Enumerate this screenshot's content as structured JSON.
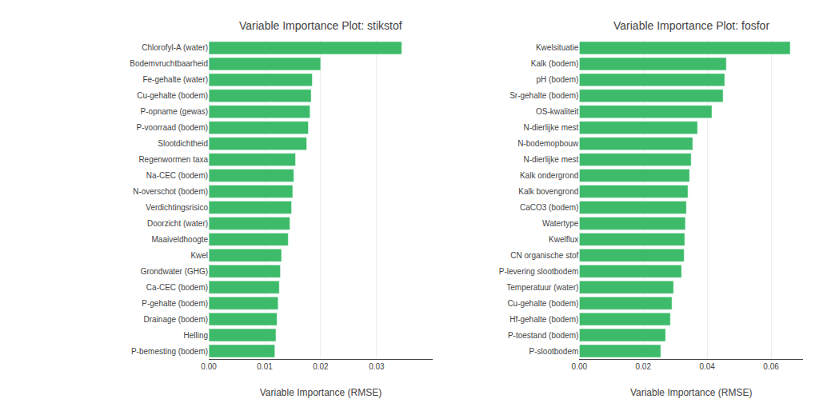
{
  "chart_data": [
    {
      "type": "bar",
      "orientation": "horizontal",
      "title": "Variable Importance Plot: stikstof",
      "xlabel": "Variable Importance (RMSE)",
      "categories": [
        "Chlorofyl-A (water)",
        "Bodemvruchtbaarheid",
        "Fe-gehalte (water)",
        "Cu-gehalte (bodem)",
        "P-opname (gewas)",
        "P-voorraad (bodem)",
        "Slootdichtheid",
        "Regenwormen taxa",
        "Na-CEC (bodem)",
        "N-overschot (bodem)",
        "Verdichtingsrisico",
        "Doorzicht (water)",
        "Maaiveldhoogte",
        "Kwel",
        "Grondwater (GHG)",
        "Ca-CEC (bodem)",
        "P-gehalte (bodem)",
        "Drainage (bodem)",
        "Helling",
        "P-bemesting (bodem)"
      ],
      "values": [
        0.0345,
        0.02,
        0.0185,
        0.0183,
        0.0181,
        0.0178,
        0.0175,
        0.0155,
        0.0152,
        0.015,
        0.0148,
        0.0145,
        0.0142,
        0.013,
        0.0128,
        0.0126,
        0.0124,
        0.0122,
        0.012,
        0.0118
      ],
      "color": "#3dbb6a",
      "xlim": [
        0,
        0.04
      ],
      "xticks": [
        {
          "value": 0,
          "label": "0.00"
        },
        0.01,
        0.02,
        0.03
      ],
      "grid": true
    },
    {
      "type": "bar",
      "orientation": "horizontal",
      "title": "Variable Importance Plot: fosfor",
      "xlabel": "Variable Importance (RMSE)",
      "categories": [
        "Kwelsituatie",
        "Kalk (bodem)",
        "pH (bodem)",
        "Sr-gehalte (bodem)",
        "OS-kwaliteit",
        "N-dierlijke mest",
        "N-bodemopbouw",
        "N-dierlijke mest",
        "Kalk ondergrond",
        "Kalk bovengrond",
        "CaCO3 (bodem)",
        "Watertype",
        "Kwelflux",
        "CN organische stof",
        "P-levering slootbodem",
        "Temperatuur (water)",
        "Cu-gehalte (bodem)",
        "Hf-gehalte (bodem)",
        "P-toestand (bodem)",
        "P-slootbodem"
      ],
      "values": [
        0.066,
        0.046,
        0.0455,
        0.045,
        0.0415,
        0.037,
        0.0355,
        0.035,
        0.0345,
        0.034,
        0.0335,
        0.0332,
        0.033,
        0.0328,
        0.032,
        0.0295,
        0.029,
        0.0285,
        0.027,
        0.0255
      ],
      "color": "#3dbb6a",
      "xlim": [
        0,
        0.07
      ],
      "xticks": [
        {
          "value": 0,
          "label": "0.00"
        },
        0.02,
        0.04,
        0.06
      ],
      "grid": true
    }
  ]
}
